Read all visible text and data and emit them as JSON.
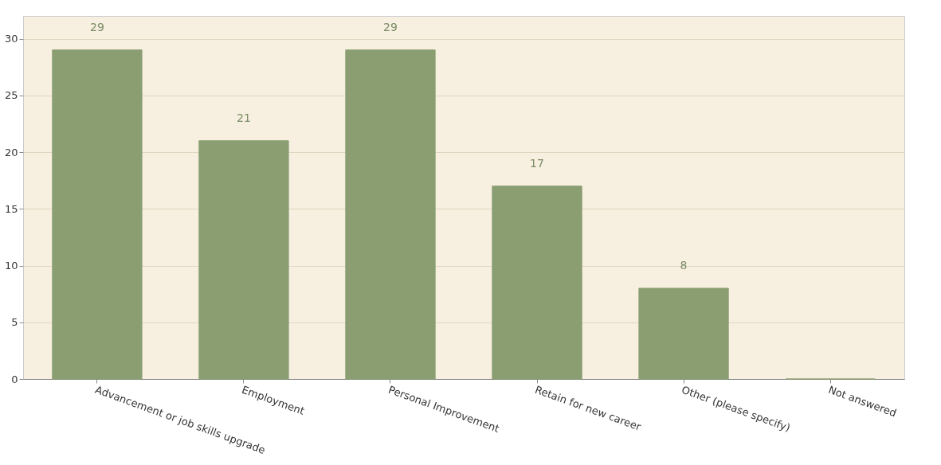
{
  "chart_data": {
    "type": "bar",
    "categories": [
      "Advancement or job skills upgrade",
      "Employment",
      "Personal Improvement",
      "Retain for new career",
      "Other (please specify)",
      "Not answered"
    ],
    "values": [
      29,
      21,
      29,
      17,
      8,
      0
    ],
    "value_labels": [
      "29",
      "21",
      "29",
      "17",
      "8",
      null
    ],
    "color": "#8a9e72",
    "ylim": [
      0,
      32
    ],
    "yticks": [
      0,
      5,
      10,
      15,
      20,
      25,
      30
    ],
    "grid": "y"
  }
}
